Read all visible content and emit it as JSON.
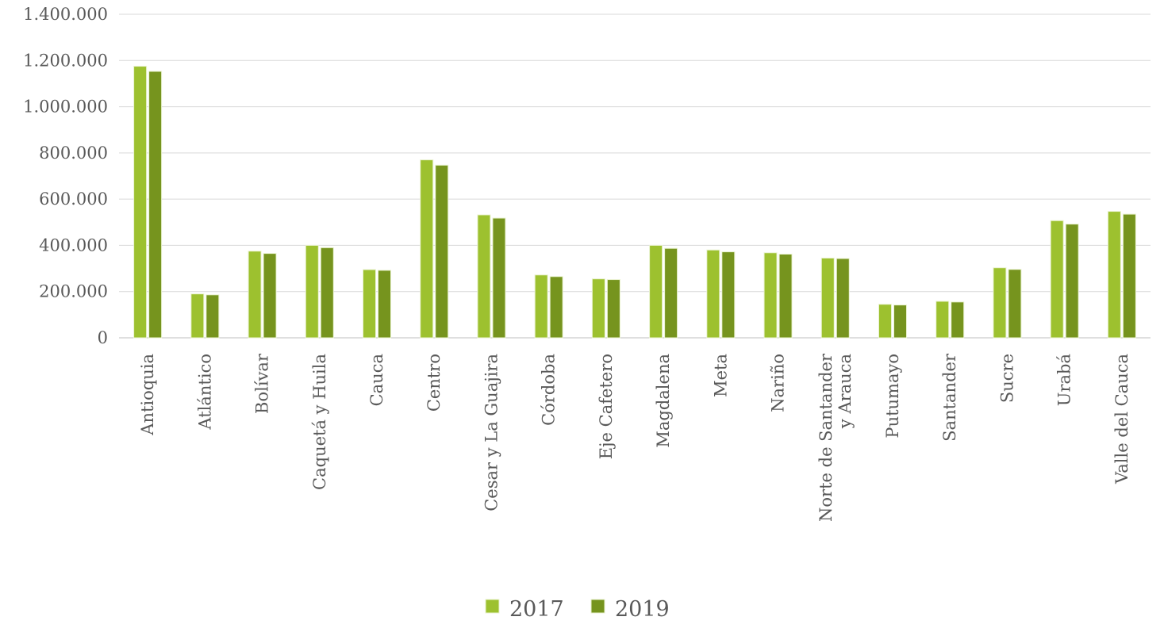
{
  "chart_data": {
    "type": "bar",
    "categories": [
      "Antioquia",
      "Atlántico",
      "Bolívar",
      "Caquetá y Huila",
      "Cauca",
      "Centro",
      "Cesar y La Guajira",
      "Córdoba",
      "Eje Cafetero",
      "Magdalena",
      "Meta",
      "Nariño",
      "Norte de Santander\ny Arauca",
      "Putumayo",
      "Santander",
      "Sucre",
      "Urabá",
      "Valle del Cauca"
    ],
    "series": [
      {
        "name": "2017",
        "color": "#9dc12f",
        "values": [
          1175000,
          190000,
          375000,
          400000,
          295000,
          770000,
          532000,
          272000,
          255000,
          400000,
          380000,
          368000,
          345000,
          145000,
          158000,
          303000,
          507000,
          547000
        ]
      },
      {
        "name": "2019",
        "color": "#76941e",
        "values": [
          1153000,
          186000,
          365000,
          390000,
          292000,
          747000,
          518000,
          265000,
          252000,
          387000,
          372000,
          362000,
          343000,
          142000,
          155000,
          296000,
          492000,
          535000
        ]
      }
    ],
    "yticks": [
      "0",
      "200.000",
      "400.000",
      "600.000",
      "800.000",
      "1.000.000",
      "1.200.000",
      "1.400.000"
    ],
    "ylim": [
      0,
      1400000
    ],
    "grid": true,
    "legend_position": "bottom"
  }
}
